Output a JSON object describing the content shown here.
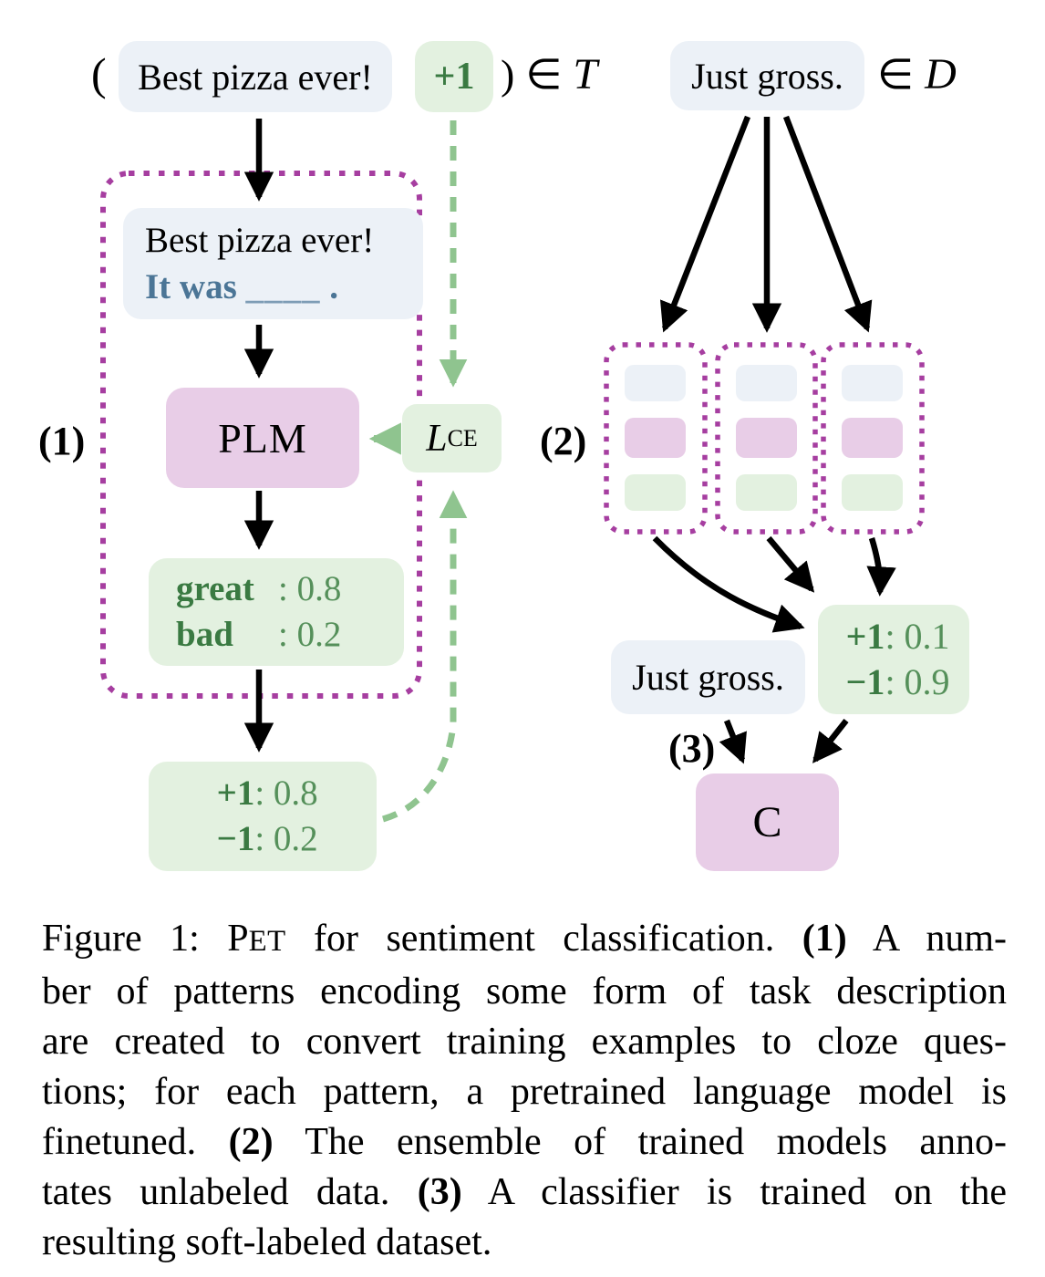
{
  "colors": {
    "example_blue_bg": "#ecf1f7",
    "label_green_bg": "#e3f1e0",
    "model_purple_bg": "#e8cde7",
    "dotted_border_purple": "#a63ea0",
    "arrow_green": "#8fc48f",
    "text_green_dark": "#3a7a42",
    "text_green_value": "#55905a",
    "text_steel_blue": "#4b7596"
  },
  "figure": {
    "step1_label": "(1)",
    "step2_label": "(2)",
    "step3_label": "(3)",
    "train_example": {
      "open_paren": "(",
      "text": "Best pizza ever!",
      "label": "+1",
      "close_paren": ")",
      "element_of": "∈",
      "set_name": "T"
    },
    "unlabeled_example": {
      "text": "Just gross.",
      "element_of": "∈",
      "set_name": "D"
    },
    "cloze_box": {
      "line1": "Best pizza ever!",
      "line2_prefix": "It was ",
      "line2_blank": "____",
      "line2_suffix": " ."
    },
    "plm_label": "PLM",
    "loss_box": {
      "symbol": "L",
      "subscript": "CE"
    },
    "plm_output": {
      "rows": [
        {
          "label": "great",
          "value": ": 0.8"
        },
        {
          "label": "bad",
          "value": ": 0.2"
        }
      ]
    },
    "train_soft_label": {
      "rows": [
        {
          "label": "+1",
          "value": ": 0.8"
        },
        {
          "label": "−1",
          "value": ": 0.2"
        }
      ]
    },
    "ensemble_soft_label": {
      "rows": [
        {
          "label": "+1",
          "value": ": 0.1"
        },
        {
          "label": "−1",
          "value": ": 0.9"
        }
      ]
    },
    "unlabeled_copy": "Just gross.",
    "classifier_label": "C"
  },
  "caption": {
    "lines": [
      {
        "segs": [
          {
            "t": "Figure 1: "
          },
          {
            "t": "P"
          },
          {
            "t": "ET",
            "sc": true
          },
          {
            "t": " for sentiment classification. "
          },
          {
            "t": "(1)",
            "b": true
          },
          {
            "t": " A num-"
          }
        ]
      },
      {
        "segs": [
          {
            "t": "ber of patterns encoding some form of task description"
          }
        ]
      },
      {
        "segs": [
          {
            "t": "are created to convert training examples to cloze ques-"
          }
        ]
      },
      {
        "segs": [
          {
            "t": "tions; for each pattern, a pretrained language model is"
          }
        ]
      },
      {
        "segs": [
          {
            "t": "finetuned. "
          },
          {
            "t": "(2)",
            "b": true
          },
          {
            "t": " The ensemble of trained models anno-"
          }
        ]
      },
      {
        "segs": [
          {
            "t": "tates unlabeled data. "
          },
          {
            "t": "(3)",
            "b": true
          },
          {
            "t": " A classifier is trained on the"
          }
        ]
      },
      {
        "last": true,
        "segs": [
          {
            "t": "resulting soft-labeled dataset."
          }
        ]
      }
    ]
  }
}
